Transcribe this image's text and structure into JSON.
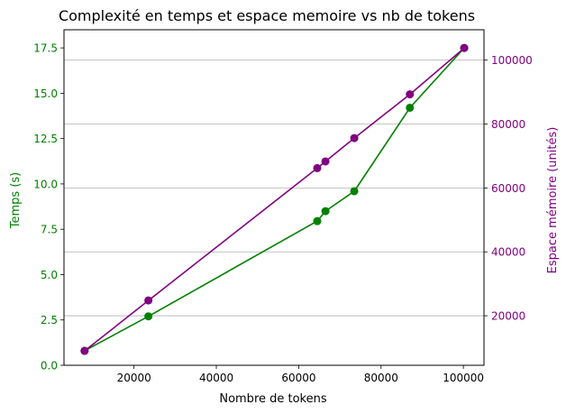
{
  "chart_data": {
    "type": "line",
    "title": "Complexité en temps et espace memoire vs nb de tokens",
    "xlabel": "Nombre de tokens",
    "ylabel_left": "Temps (s)",
    "ylabel_right": "Espace mémoire (unités)",
    "xlim": [
      3000,
      105000
    ],
    "ylim_left": [
      0,
      18.5
    ],
    "ylim_right": [
      4500,
      109500
    ],
    "x_ticks": [
      20000,
      40000,
      60000,
      80000,
      100000
    ],
    "y_ticks_left": [
      0.0,
      2.5,
      5.0,
      7.5,
      10.0,
      12.5,
      15.0,
      17.5
    ],
    "y_ticks_right": [
      20000,
      40000,
      60000,
      80000,
      100000
    ],
    "grid": "right-axis horizontal",
    "x": [
      8000,
      23500,
      64500,
      66500,
      73500,
      87000,
      100200
    ],
    "series": [
      {
        "axis": "left",
        "color": "#008000",
        "values": [
          0.8,
          2.7,
          7.95,
          8.5,
          9.6,
          14.2,
          17.5
        ]
      },
      {
        "axis": "right",
        "color": "#800080",
        "values": [
          9000,
          24800,
          66200,
          68300,
          75600,
          89300,
          103800
        ]
      }
    ]
  }
}
